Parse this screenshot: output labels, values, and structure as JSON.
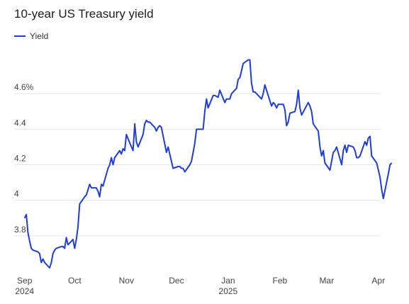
{
  "chart_data": {
    "type": "line",
    "title": "10-year US Treasury yield",
    "legend": "Yield",
    "legend_position": "top-left",
    "grid": true,
    "colors": {
      "series": "#1f3ddb",
      "grid": "#e6e6e6",
      "text": "#444444"
    },
    "ylim": [
      3.6,
      4.84
    ],
    "xlim": [
      "2024-08-30",
      "2025-04-13"
    ],
    "y_ticks": [
      {
        "value": 3.8,
        "label": "3.8"
      },
      {
        "value": 4.0,
        "label": "4"
      },
      {
        "value": 4.2,
        "label": "4.2"
      },
      {
        "value": 4.4,
        "label": "4.4"
      },
      {
        "value": 4.6,
        "label": "4.6%"
      }
    ],
    "x_ticks": [
      {
        "date": "2024-09-01",
        "label": "Sep",
        "sublabel": "2024"
      },
      {
        "date": "2024-10-01",
        "label": "Oct",
        "sublabel": ""
      },
      {
        "date": "2024-11-01",
        "label": "Nov",
        "sublabel": ""
      },
      {
        "date": "2024-12-01",
        "label": "Dec",
        "sublabel": ""
      },
      {
        "date": "2025-01-01",
        "label": "Jan",
        "sublabel": "2025"
      },
      {
        "date": "2025-02-01",
        "label": "Feb",
        "sublabel": ""
      },
      {
        "date": "2025-03-01",
        "label": "Mar",
        "sublabel": ""
      },
      {
        "date": "2025-04-01",
        "label": "Apr",
        "sublabel": ""
      }
    ],
    "series": [
      {
        "name": "Yield",
        "points": [
          [
            "2024-09-01",
            3.9
          ],
          [
            "2024-09-02",
            3.92
          ],
          [
            "2024-09-03",
            3.82
          ],
          [
            "2024-09-04",
            3.77
          ],
          [
            "2024-09-05",
            3.73
          ],
          [
            "2024-09-06",
            3.72
          ],
          [
            "2024-09-09",
            3.71
          ],
          [
            "2024-09-10",
            3.7
          ],
          [
            "2024-09-11",
            3.65
          ],
          [
            "2024-09-12",
            3.67
          ],
          [
            "2024-09-13",
            3.65
          ],
          [
            "2024-09-16",
            3.62
          ],
          [
            "2024-09-17",
            3.65
          ],
          [
            "2024-09-18",
            3.7
          ],
          [
            "2024-09-19",
            3.72
          ],
          [
            "2024-09-20",
            3.73
          ],
          [
            "2024-09-23",
            3.74
          ],
          [
            "2024-09-24",
            3.74
          ],
          [
            "2024-09-25",
            3.73
          ],
          [
            "2024-09-26",
            3.79
          ],
          [
            "2024-09-27",
            3.75
          ],
          [
            "2024-09-30",
            3.78
          ],
          [
            "2024-10-01",
            3.73
          ],
          [
            "2024-10-02",
            3.78
          ],
          [
            "2024-10-03",
            3.85
          ],
          [
            "2024-10-04",
            3.98
          ],
          [
            "2024-10-07",
            4.02
          ],
          [
            "2024-10-08",
            4.03
          ],
          [
            "2024-10-09",
            4.06
          ],
          [
            "2024-10-10",
            4.09
          ],
          [
            "2024-10-11",
            4.07
          ],
          [
            "2024-10-14",
            4.07
          ],
          [
            "2024-10-15",
            4.05
          ],
          [
            "2024-10-16",
            4.02
          ],
          [
            "2024-10-17",
            4.09
          ],
          [
            "2024-10-18",
            4.08
          ],
          [
            "2024-10-21",
            4.18
          ],
          [
            "2024-10-22",
            4.2
          ],
          [
            "2024-10-23",
            4.24
          ],
          [
            "2024-10-24",
            4.2
          ],
          [
            "2024-10-25",
            4.24
          ],
          [
            "2024-10-28",
            4.28
          ],
          [
            "2024-10-29",
            4.26
          ],
          [
            "2024-10-30",
            4.29
          ],
          [
            "2024-10-31",
            4.28
          ],
          [
            "2024-11-01",
            4.37
          ],
          [
            "2024-11-04",
            4.3
          ],
          [
            "2024-11-05",
            4.28
          ],
          [
            "2024-11-06",
            4.43
          ],
          [
            "2024-11-07",
            4.33
          ],
          [
            "2024-11-08",
            4.3
          ],
          [
            "2024-11-11",
            4.37
          ],
          [
            "2024-11-12",
            4.43
          ],
          [
            "2024-11-13",
            4.45
          ],
          [
            "2024-11-14",
            4.44
          ],
          [
            "2024-11-15",
            4.44
          ],
          [
            "2024-11-18",
            4.41
          ],
          [
            "2024-11-19",
            4.39
          ],
          [
            "2024-11-20",
            4.41
          ],
          [
            "2024-11-21",
            4.42
          ],
          [
            "2024-11-22",
            4.41
          ],
          [
            "2024-11-25",
            4.27
          ],
          [
            "2024-11-26",
            4.3
          ],
          [
            "2024-11-27",
            4.26
          ],
          [
            "2024-11-29",
            4.18
          ],
          [
            "2024-12-02",
            4.19
          ],
          [
            "2024-12-03",
            4.19
          ],
          [
            "2024-12-04",
            4.18
          ],
          [
            "2024-12-05",
            4.18
          ],
          [
            "2024-12-06",
            4.16
          ],
          [
            "2024-12-09",
            4.2
          ],
          [
            "2024-12-10",
            4.22
          ],
          [
            "2024-12-11",
            4.27
          ],
          [
            "2024-12-12",
            4.32
          ],
          [
            "2024-12-13",
            4.4
          ],
          [
            "2024-12-16",
            4.4
          ],
          [
            "2024-12-17",
            4.4
          ],
          [
            "2024-12-18",
            4.5
          ],
          [
            "2024-12-19",
            4.57
          ],
          [
            "2024-12-20",
            4.52
          ],
          [
            "2024-12-23",
            4.59
          ],
          [
            "2024-12-24",
            4.59
          ],
          [
            "2024-12-26",
            4.58
          ],
          [
            "2024-12-27",
            4.62
          ],
          [
            "2024-12-30",
            4.55
          ],
          [
            "2024-12-31",
            4.57
          ],
          [
            "2025-01-02",
            4.57
          ],
          [
            "2025-01-03",
            4.6
          ],
          [
            "2025-01-06",
            4.63
          ],
          [
            "2025-01-07",
            4.68
          ],
          [
            "2025-01-08",
            4.69
          ],
          [
            "2025-01-10",
            4.77
          ],
          [
            "2025-01-13",
            4.79
          ],
          [
            "2025-01-14",
            4.79
          ],
          [
            "2025-01-15",
            4.66
          ],
          [
            "2025-01-16",
            4.61
          ],
          [
            "2025-01-17",
            4.61
          ],
          [
            "2025-01-21",
            4.57
          ],
          [
            "2025-01-22",
            4.6
          ],
          [
            "2025-01-23",
            4.65
          ],
          [
            "2025-01-24",
            4.62
          ],
          [
            "2025-01-27",
            4.53
          ],
          [
            "2025-01-28",
            4.55
          ],
          [
            "2025-01-29",
            4.54
          ],
          [
            "2025-01-30",
            4.52
          ],
          [
            "2025-01-31",
            4.54
          ],
          [
            "2025-02-03",
            4.54
          ],
          [
            "2025-02-04",
            4.51
          ],
          [
            "2025-02-05",
            4.42
          ],
          [
            "2025-02-06",
            4.44
          ],
          [
            "2025-02-07",
            4.49
          ],
          [
            "2025-02-10",
            4.5
          ],
          [
            "2025-02-11",
            4.54
          ],
          [
            "2025-02-12",
            4.62
          ],
          [
            "2025-02-13",
            4.52
          ],
          [
            "2025-02-14",
            4.48
          ],
          [
            "2025-02-18",
            4.55
          ],
          [
            "2025-02-19",
            4.53
          ],
          [
            "2025-02-20",
            4.5
          ],
          [
            "2025-02-21",
            4.43
          ],
          [
            "2025-02-24",
            4.39
          ],
          [
            "2025-02-25",
            4.3
          ],
          [
            "2025-02-26",
            4.25
          ],
          [
            "2025-02-27",
            4.28
          ],
          [
            "2025-02-28",
            4.21
          ],
          [
            "2025-03-03",
            4.17
          ],
          [
            "2025-03-04",
            4.22
          ],
          [
            "2025-03-05",
            4.27
          ],
          [
            "2025-03-06",
            4.28
          ],
          [
            "2025-03-07",
            4.3
          ],
          [
            "2025-03-10",
            4.2
          ],
          [
            "2025-03-11",
            4.28
          ],
          [
            "2025-03-12",
            4.31
          ],
          [
            "2025-03-13",
            4.27
          ],
          [
            "2025-03-14",
            4.31
          ],
          [
            "2025-03-17",
            4.3
          ],
          [
            "2025-03-18",
            4.28
          ],
          [
            "2025-03-19",
            4.24
          ],
          [
            "2025-03-20",
            4.24
          ],
          [
            "2025-03-21",
            4.25
          ],
          [
            "2025-03-24",
            4.33
          ],
          [
            "2025-03-25",
            4.31
          ],
          [
            "2025-03-26",
            4.35
          ],
          [
            "2025-03-27",
            4.36
          ],
          [
            "2025-03-28",
            4.25
          ],
          [
            "2025-03-31",
            4.21
          ],
          [
            "2025-04-01",
            4.17
          ],
          [
            "2025-04-02",
            4.13
          ],
          [
            "2025-04-03",
            4.06
          ],
          [
            "2025-04-04",
            4.01
          ],
          [
            "2025-04-07",
            4.15
          ],
          [
            "2025-04-08",
            4.2
          ],
          [
            "2025-04-09",
            4.21
          ]
        ]
      }
    ]
  }
}
